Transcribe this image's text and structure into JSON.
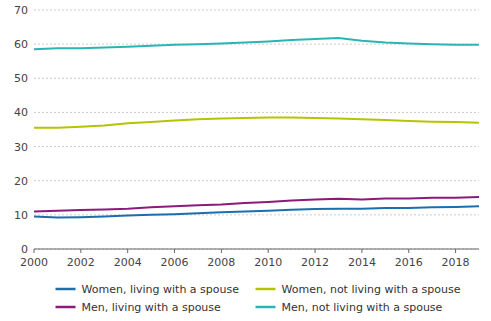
{
  "chart_data": {
    "type": "line",
    "x": [
      2000,
      2001,
      2002,
      2003,
      2004,
      2005,
      2006,
      2007,
      2008,
      2009,
      2010,
      2011,
      2012,
      2013,
      2014,
      2015,
      2016,
      2017,
      2018,
      2019
    ],
    "series": [
      {
        "name": "Women, living with a spouse",
        "color": "#1a6faf",
        "values": [
          9.5,
          9.2,
          9.3,
          9.5,
          9.8,
          10.0,
          10.2,
          10.5,
          10.8,
          11.0,
          11.2,
          11.5,
          11.7,
          11.8,
          11.8,
          12.0,
          12.0,
          12.2,
          12.3,
          12.5
        ]
      },
      {
        "name": "Women, not living with a spouse",
        "color": "#b5c400",
        "values": [
          35.5,
          35.5,
          35.8,
          36.2,
          36.8,
          37.2,
          37.6,
          38.0,
          38.2,
          38.4,
          38.5,
          38.5,
          38.4,
          38.2,
          38.0,
          37.8,
          37.5,
          37.3,
          37.2,
          37.0
        ]
      },
      {
        "name": "Men, living with a spouse",
        "color": "#8b1a7a",
        "values": [
          11.0,
          11.2,
          11.4,
          11.6,
          11.8,
          12.2,
          12.5,
          12.8,
          13.0,
          13.5,
          13.8,
          14.2,
          14.5,
          14.7,
          14.5,
          14.8,
          14.8,
          15.0,
          15.0,
          15.2
        ]
      },
      {
        "name": "Men, not living with a spouse",
        "color": "#2ab5b5",
        "values": [
          58.5,
          58.8,
          58.8,
          59.0,
          59.2,
          59.5,
          59.8,
          60.0,
          60.2,
          60.5,
          60.8,
          61.2,
          61.5,
          61.8,
          61.0,
          60.5,
          60.2,
          60.0,
          59.8,
          59.8
        ]
      }
    ],
    "xlim": [
      2000,
      2019
    ],
    "xticks": [
      2000,
      2002,
      2004,
      2006,
      2008,
      2010,
      2012,
      2014,
      2016,
      2018
    ],
    "ylim": [
      0,
      70
    ],
    "yticks": [
      0,
      10,
      20,
      30,
      40,
      50,
      60,
      70
    ],
    "grid": true,
    "legend": "bottom"
  }
}
